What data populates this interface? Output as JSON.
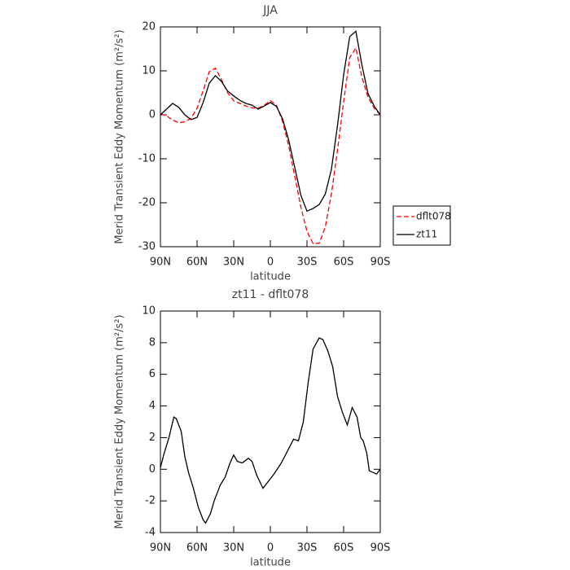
{
  "chart_data": [
    {
      "type": "line",
      "title": "JJA",
      "x_label": "latitude",
      "y_label": "Merid Transient Eddy Momentum (m²/s²)",
      "x": [
        -90,
        -85,
        -80,
        -75,
        -70,
        -65,
        -60,
        -55,
        -50,
        -45,
        -40,
        -35,
        -30,
        -25,
        -20,
        -15,
        -10,
        -5,
        0,
        5,
        10,
        15,
        20,
        25,
        30,
        35,
        40,
        45,
        50,
        55,
        60,
        65,
        70,
        75,
        80,
        85,
        90
      ],
      "series": [
        {
          "name": "dflt078",
          "color": "#ff0000",
          "line_style": "dashed",
          "values": [
            0.2,
            -0.2,
            -1.2,
            -1.8,
            -1.6,
            -0.8,
            1.5,
            5.5,
            9.8,
            10.6,
            8,
            5,
            3.2,
            2.6,
            2,
            1.6,
            1.5,
            2.2,
            3.2,
            2.2,
            -1.5,
            -7,
            -14,
            -21,
            -26.5,
            -29.3,
            -29.2,
            -25.5,
            -18,
            -8,
            3,
            13,
            15.2,
            8.5,
            4,
            1.5,
            0
          ]
        },
        {
          "name": "zt11",
          "color": "#000000",
          "line_style": "solid",
          "values": [
            0,
            1.3,
            2.6,
            1.7,
            0,
            -1.1,
            -0.6,
            2.8,
            7.2,
            8.9,
            7.6,
            5.4,
            4.3,
            3.3,
            2.6,
            2.2,
            1.3,
            2,
            2.8,
            1.9,
            -0.9,
            -5.7,
            -12,
            -18.3,
            -21.9,
            -21.3,
            -20.4,
            -18,
            -12.4,
            -2.4,
            9.1,
            17.8,
            19,
            11.3,
            4.8,
            2,
            0
          ]
        }
      ],
      "xlim": [
        -90,
        90
      ],
      "xticks": [
        {
          "value": -90,
          "label": "90N"
        },
        {
          "value": -60,
          "label": "60N"
        },
        {
          "value": -30,
          "label": "30N"
        },
        0,
        {
          "value": 30,
          "label": "30S"
        },
        {
          "value": 60,
          "label": "60S"
        },
        {
          "value": 90,
          "label": "90S"
        }
      ],
      "ylim": [
        -30,
        20
      ],
      "yticks": [
        -30,
        -20,
        -10,
        0,
        10,
        20
      ],
      "legend": "right"
    },
    {
      "type": "line",
      "title": "zt11 - dflt078",
      "x_label": "latitude",
      "y_label": "Merid Transient Eddy Momentum (m²/s²)",
      "x": [
        -90,
        -87,
        -83,
        -79,
        -77,
        -73,
        -70,
        -67,
        -63,
        -59,
        -55,
        -53,
        -49,
        -46,
        -41,
        -37,
        -33,
        -30,
        -27,
        -23,
        -18,
        -15,
        -11,
        -6,
        -1,
        3,
        9,
        13,
        19,
        23,
        27,
        31,
        35,
        40,
        43,
        47,
        51,
        55,
        59,
        63,
        67,
        71,
        74,
        76,
        79,
        81,
        84,
        87,
        90
      ],
      "series": [
        {
          "color": "#000000",
          "line_style": "solid",
          "values": [
            0.1,
            1.0,
            2.0,
            3.3,
            3.2,
            2.4,
            0.8,
            -0.2,
            -1.2,
            -2.4,
            -3.2,
            -3.4,
            -2.8,
            -2.0,
            -1.0,
            -0.5,
            0.4,
            0.9,
            0.5,
            0.4,
            0.7,
            0.5,
            -0.4,
            -1.2,
            -0.7,
            -0.3,
            0.4,
            1.0,
            1.9,
            1.8,
            3.0,
            5.5,
            7.6,
            8.3,
            8.2,
            7.5,
            6.5,
            4.6,
            3.6,
            2.8,
            3.9,
            3.3,
            2.0,
            1.8,
            1.0,
            -0.1,
            -0.2,
            -0.3,
            0.0
          ]
        }
      ],
      "xlim": [
        -90,
        90
      ],
      "xticks": [
        {
          "value": -90,
          "label": "90N"
        },
        {
          "value": -60,
          "label": "60N"
        },
        {
          "value": -30,
          "label": "30N"
        },
        0,
        {
          "value": 30,
          "label": "30S"
        },
        {
          "value": 60,
          "label": "60S"
        },
        {
          "value": 90,
          "label": "90S"
        }
      ],
      "ylim": [
        -4,
        10
      ],
      "yticks": [
        -4,
        -2,
        0,
        2,
        4,
        6,
        8,
        10
      ]
    }
  ]
}
